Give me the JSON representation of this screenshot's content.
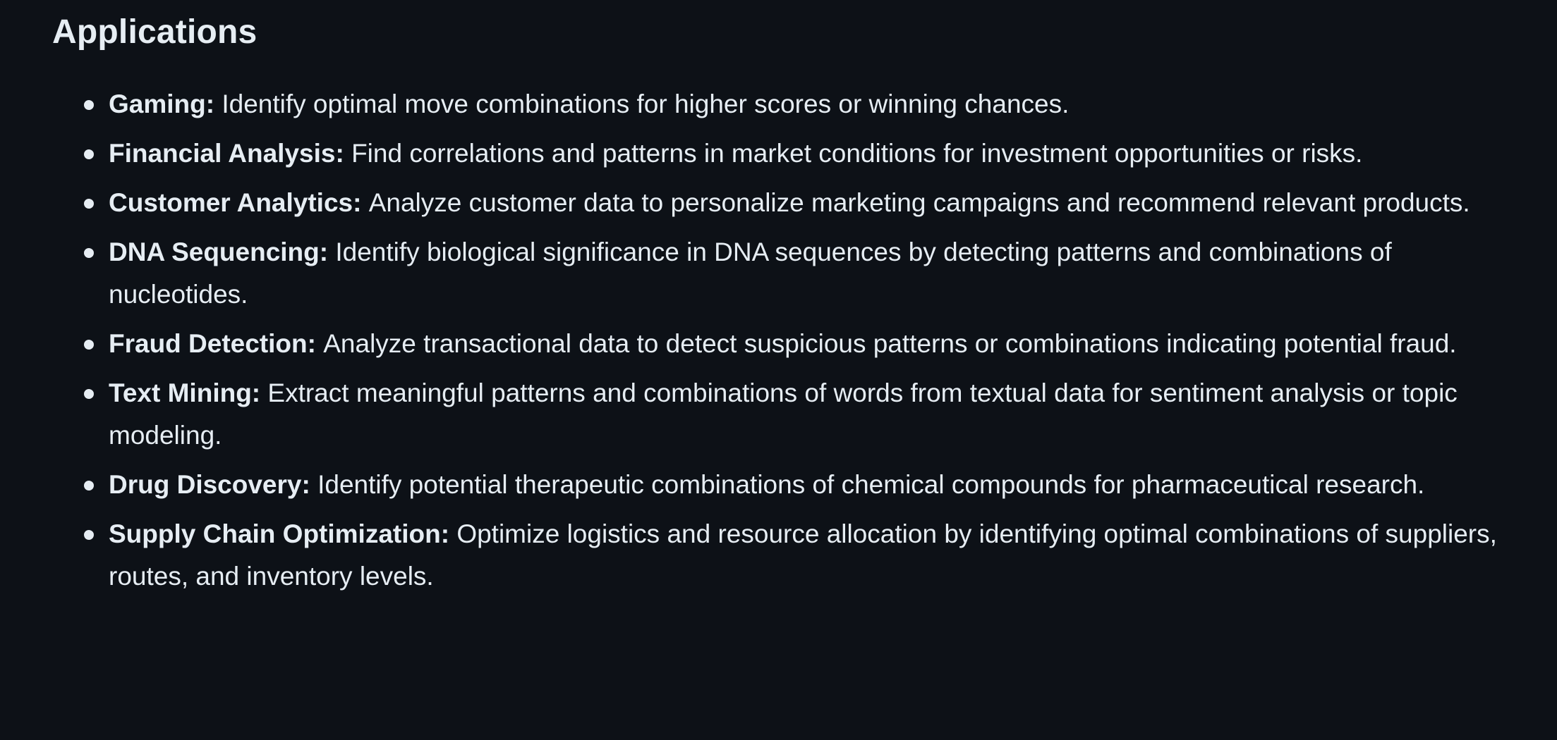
{
  "section": {
    "title": "Applications"
  },
  "items": [
    {
      "term": "Gaming:",
      "description": "Identify optimal move combinations for higher scores or winning chances."
    },
    {
      "term": "Financial Analysis:",
      "description": "Find correlations and patterns in market conditions for investment opportunities or risks."
    },
    {
      "term": "Customer Analytics:",
      "description": "Analyze customer data to personalize marketing campaigns and recommend relevant products."
    },
    {
      "term": "DNA Sequencing:",
      "description": "Identify biological significance in DNA sequences by detecting patterns and combinations of nucleotides."
    },
    {
      "term": "Fraud Detection:",
      "description": "Analyze transactional data to detect suspicious patterns or combinations indicating potential fraud."
    },
    {
      "term": "Text Mining:",
      "description": "Extract meaningful patterns and combinations of words from textual data for sentiment analysis or topic modeling."
    },
    {
      "term": "Drug Discovery:",
      "description": "Identify potential therapeutic combinations of chemical compounds for pharmaceutical research."
    },
    {
      "term": "Supply Chain Optimization:",
      "description": "Optimize logistics and resource allocation by identifying optimal combinations of suppliers, routes, and inventory levels."
    }
  ],
  "colors": {
    "background": "#0d1117",
    "text": "#e6edf3"
  }
}
